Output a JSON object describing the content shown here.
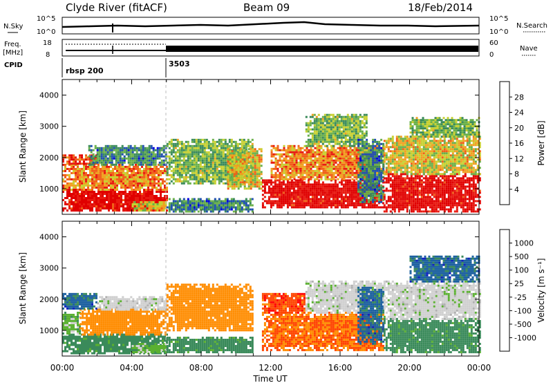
{
  "header": {
    "station": "Clyde River (fitACF)",
    "beam": "Beam 09",
    "date": "18/Feb/2014"
  },
  "noise_panel": {
    "left_label": "N.Sky",
    "right_label": "N.Search",
    "left_ticks": [
      "10^5",
      "10^0"
    ],
    "right_ticks": [
      "10^5",
      "10^0"
    ]
  },
  "freq_panel": {
    "left_label_1": "Freq.",
    "left_label_2": "[MHz]",
    "right_label": "Nave",
    "left_ticks": [
      "18",
      "8"
    ],
    "right_ticks": [
      "60",
      "0"
    ]
  },
  "cpid_panel": {
    "label": "CPID",
    "segments": [
      {
        "name": "rbsp 200",
        "start": "00:00"
      },
      {
        "name": "3503",
        "start": "06:00"
      }
    ]
  },
  "xaxis": {
    "title": "Time UT",
    "ticks": [
      "00:00",
      "04:00",
      "08:00",
      "12:00",
      "16:00",
      "20:00",
      "00:00"
    ]
  },
  "colors": {
    "power": [
      "#0000e0",
      "#2050b0",
      "#3a8a5a",
      "#6ab04a",
      "#c8d030",
      "#f0a020",
      "#f06018",
      "#e81a10",
      "#e00000"
    ],
    "velocity": [
      "#ff0000",
      "#ff4500",
      "#ff8c00",
      "#b0b0b0",
      "#d0d0d0",
      "#5ab030",
      "#3a8a5a",
      "#1c60a0",
      "#1020c0"
    ]
  },
  "chart_data": [
    {
      "type": "heatmap",
      "title": "Power",
      "ylabel": "Slant Range [km]",
      "xlabel": "Time UT",
      "xlim": [
        0,
        24
      ],
      "ylim": [
        180,
        4500
      ],
      "yticks": [
        1000,
        2000,
        3000,
        4000
      ],
      "colorbar": {
        "label": "Power [dB]",
        "ticks": [
          "4",
          "8",
          "12",
          "16",
          "20",
          "24",
          "28"
        ],
        "range": [
          0,
          30
        ]
      },
      "regions": [
        {
          "t0": 0.0,
          "t1": 6.0,
          "r0": 300,
          "r1": 1000,
          "value": 28
        },
        {
          "t0": 0.0,
          "t1": 6.0,
          "r0": 1000,
          "r1": 1800,
          "value": 20
        },
        {
          "t0": 0.0,
          "t1": 2.0,
          "r0": 1800,
          "r1": 2100,
          "value": 24
        },
        {
          "t0": 1.5,
          "t1": 6.0,
          "r0": 1800,
          "r1": 2400,
          "value": 8
        },
        {
          "t0": 4.0,
          "t1": 6.0,
          "r0": 300,
          "r1": 600,
          "value": 16
        },
        {
          "t0": 6.0,
          "t1": 11.0,
          "r0": 1200,
          "r1": 2600,
          "value": 12
        },
        {
          "t0": 6.0,
          "t1": 11.0,
          "r0": 300,
          "r1": 700,
          "value": 8
        },
        {
          "t0": 9.5,
          "t1": 11.5,
          "r0": 1000,
          "r1": 2300,
          "value": 16
        },
        {
          "t0": 11.5,
          "t1": 18.5,
          "r0": 400,
          "r1": 1300,
          "value": 28
        },
        {
          "t0": 12.0,
          "t1": 18.5,
          "r0": 1300,
          "r1": 2400,
          "value": 20
        },
        {
          "t0": 14.0,
          "t1": 17.5,
          "r0": 2400,
          "r1": 3400,
          "value": 12
        },
        {
          "t0": 17.0,
          "t1": 18.5,
          "r0": 600,
          "r1": 2600,
          "value": 8
        },
        {
          "t0": 18.5,
          "t1": 24.0,
          "r0": 300,
          "r1": 1500,
          "value": 28
        },
        {
          "t0": 18.5,
          "t1": 24.0,
          "r0": 1500,
          "r1": 2700,
          "value": 16
        },
        {
          "t0": 20.0,
          "t1": 24.0,
          "r0": 2700,
          "r1": 3300,
          "value": 12
        }
      ]
    },
    {
      "type": "heatmap",
      "title": "Velocity",
      "ylabel": "Slant Range [km]",
      "xlabel": "Time UT",
      "xlim": [
        0,
        24
      ],
      "ylim": [
        180,
        4500
      ],
      "yticks": [
        1000,
        2000,
        3000,
        4000
      ],
      "colorbar": {
        "label": "Velocity [m s⁻¹]",
        "ticks": [
          "-1000",
          "-500",
          "-100",
          "-25",
          "25",
          "100",
          "500",
          "1000"
        ]
      },
      "regions": [
        {
          "t0": 0.0,
          "t1": 6.0,
          "r0": 300,
          "r1": 900,
          "value": 200
        },
        {
          "t0": 0.0,
          "t1": 1.0,
          "r0": 900,
          "r1": 1600,
          "value": 60
        },
        {
          "t0": 1.0,
          "t1": 6.0,
          "r0": 900,
          "r1": 1700,
          "value": -300
        },
        {
          "t0": 0.0,
          "t1": 2.0,
          "r0": 1700,
          "r1": 2200,
          "value": 700
        },
        {
          "t0": 2.0,
          "t1": 6.0,
          "r0": 1700,
          "r1": 2100,
          "value": 0
        },
        {
          "t0": 4.0,
          "t1": 6.0,
          "r0": 300,
          "r1": 600,
          "value": 60
        },
        {
          "t0": 6.0,
          "t1": 11.0,
          "r0": 1000,
          "r1": 2500,
          "value": -300
        },
        {
          "t0": 6.0,
          "t1": 11.0,
          "r0": 300,
          "r1": 800,
          "value": 200
        },
        {
          "t0": 11.5,
          "t1": 18.5,
          "r0": 400,
          "r1": 1600,
          "value": -500
        },
        {
          "t0": 11.5,
          "t1": 14.0,
          "r0": 1600,
          "r1": 2200,
          "value": -800
        },
        {
          "t0": 14.0,
          "t1": 18.5,
          "r0": 1600,
          "r1": 2600,
          "value": 0
        },
        {
          "t0": 17.0,
          "t1": 18.5,
          "r0": 600,
          "r1": 2400,
          "value": 700
        },
        {
          "t0": 18.5,
          "t1": 24.0,
          "r0": 300,
          "r1": 1400,
          "value": 200
        },
        {
          "t0": 18.5,
          "t1": 24.0,
          "r0": 1400,
          "r1": 2600,
          "value": 0
        },
        {
          "t0": 20.0,
          "t1": 24.0,
          "r0": 2600,
          "r1": 3400,
          "value": 700
        }
      ]
    }
  ]
}
